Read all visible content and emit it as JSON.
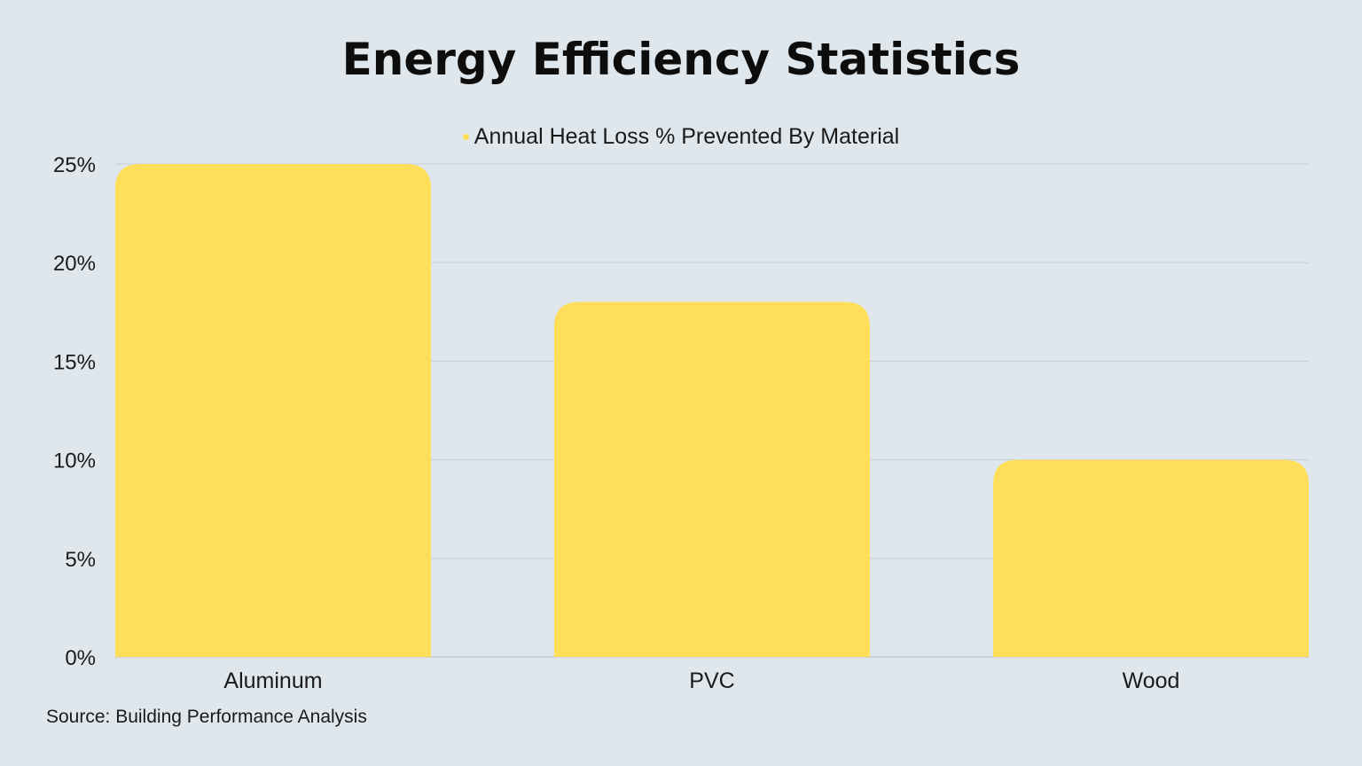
{
  "chart_data": {
    "type": "bar",
    "title": "Energy Efficiency Statistics",
    "categories": [
      "Aluminum",
      "PVC",
      "Wood"
    ],
    "series": [
      {
        "name": "Annual Heat Loss % Prevented By Material",
        "values": [
          25,
          18,
          10
        ],
        "color": "#ffde59"
      }
    ],
    "ylim": [
      0,
      25
    ],
    "yticks": [
      0,
      5,
      10,
      15,
      20,
      25
    ],
    "ytick_labels": [
      "0%",
      "5%",
      "10%",
      "15%",
      "20%",
      "25%"
    ],
    "xlabel": "",
    "ylabel": "",
    "grid": true,
    "legend": "top-center",
    "source": "Source: Building Performance Analysis"
  },
  "colors": {
    "background": "#e0e7ec",
    "grid": "#c9d1d7",
    "bar": "#ffde59"
  }
}
